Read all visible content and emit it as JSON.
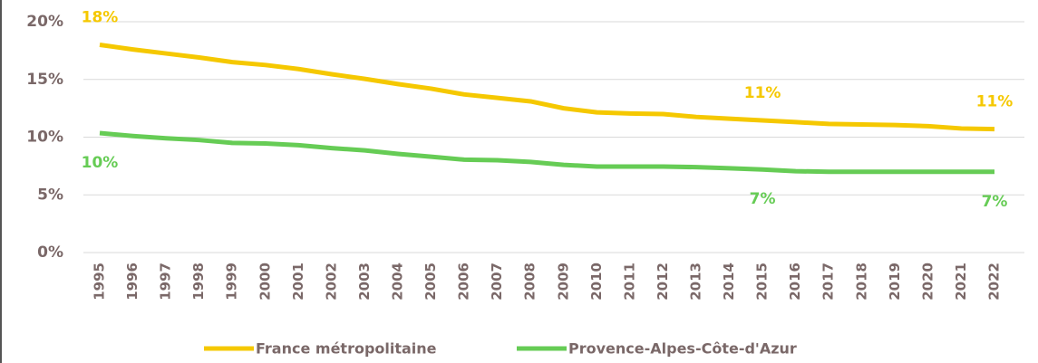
{
  "chart_data": {
    "type": "line",
    "x": [
      "1995",
      "1996",
      "1997",
      "1998",
      "1999",
      "2000",
      "2001",
      "2002",
      "2003",
      "2004",
      "2005",
      "2006",
      "2007",
      "2008",
      "2009",
      "2010",
      "2011",
      "2012",
      "2013",
      "2014",
      "2015",
      "2016",
      "2017",
      "2018",
      "2019",
      "2020",
      "2021",
      "2022"
    ],
    "series": [
      {
        "name": "France métropolitaine",
        "color": "#f5c800",
        "values": [
          18.0,
          17.6,
          17.25,
          16.9,
          16.5,
          16.25,
          15.9,
          15.45,
          15.05,
          14.6,
          14.2,
          13.7,
          13.4,
          13.1,
          12.5,
          12.15,
          12.05,
          12.0,
          11.75,
          11.6,
          11.45,
          11.3,
          11.15,
          11.1,
          11.05,
          10.95,
          10.75,
          10.7
        ],
        "value_labels": [
          "18%",
          null,
          null,
          null,
          null,
          null,
          null,
          null,
          null,
          null,
          null,
          null,
          null,
          null,
          null,
          null,
          null,
          null,
          null,
          null,
          "11%",
          null,
          null,
          null,
          null,
          null,
          null,
          "11%"
        ]
      },
      {
        "name": "Provence-Alpes-Côte-d'Azur",
        "color": "#66cc55",
        "values": [
          10.35,
          10.1,
          9.9,
          9.75,
          9.5,
          9.45,
          9.3,
          9.05,
          8.85,
          8.55,
          8.3,
          8.05,
          8.0,
          7.85,
          7.6,
          7.45,
          7.45,
          7.45,
          7.4,
          7.3,
          7.2,
          7.05,
          7.0,
          7.0,
          7.0,
          7.0,
          7.0,
          7.0
        ],
        "value_labels": [
          "10%",
          null,
          null,
          null,
          null,
          null,
          null,
          null,
          null,
          null,
          null,
          null,
          null,
          null,
          null,
          null,
          null,
          null,
          null,
          null,
          "7%",
          null,
          null,
          null,
          null,
          null,
          null,
          "7%"
        ]
      }
    ],
    "ylim": [
      0,
      20
    ],
    "yticks": [
      {
        "value": 0,
        "label": "0%"
      },
      {
        "value": 5,
        "label": "5%"
      },
      {
        "value": 10,
        "label": "10%"
      },
      {
        "value": 15,
        "label": "15%"
      },
      {
        "value": 20,
        "label": "20%"
      }
    ],
    "grid": true,
    "legend": "bottom"
  }
}
